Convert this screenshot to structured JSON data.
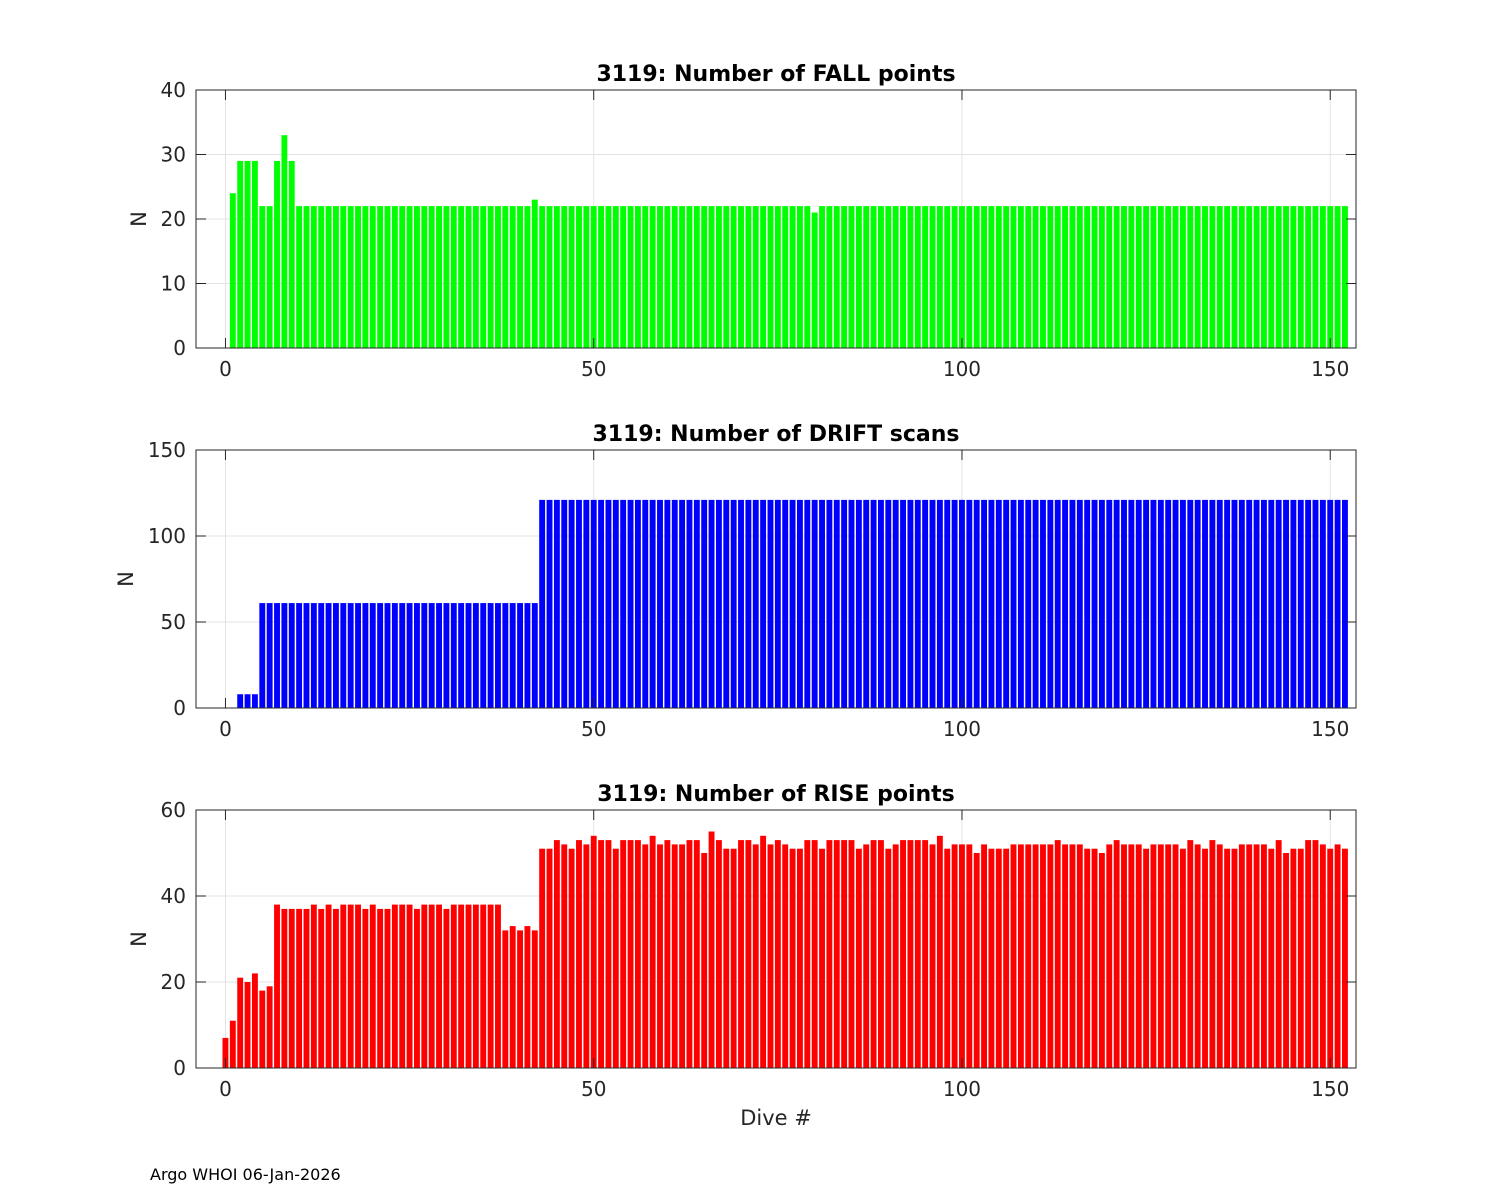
{
  "footer": "Argo WHOI 06-Jan-2026",
  "chart_data": [
    {
      "type": "bar",
      "title": "3119: Number of FALL points",
      "xlabel": "",
      "ylabel": "N",
      "xlim": [
        -4,
        153.5
      ],
      "ylim": [
        0,
        40
      ],
      "xticks": [
        0,
        50,
        100,
        150
      ],
      "yticks": [
        0,
        10,
        20,
        30,
        40
      ],
      "grid": true,
      "color": "#00ff00",
      "x_start": 0,
      "values": [
        0,
        24,
        29,
        29,
        29,
        22,
        22,
        29,
        33,
        29,
        22,
        22,
        22,
        22,
        22,
        22,
        22,
        22,
        22,
        22,
        22,
        22,
        22,
        22,
        22,
        22,
        22,
        22,
        22,
        22,
        22,
        22,
        22,
        22,
        22,
        22,
        22,
        22,
        22,
        22,
        22,
        22,
        23,
        22,
        22,
        22,
        22,
        22,
        22,
        22,
        22,
        22,
        22,
        22,
        22,
        22,
        22,
        22,
        22,
        22,
        22,
        22,
        22,
        22,
        22,
        22,
        22,
        22,
        22,
        22,
        22,
        22,
        22,
        22,
        22,
        22,
        22,
        22,
        22,
        22,
        21,
        22,
        22,
        22,
        22,
        22,
        22,
        22,
        22,
        22,
        22,
        22,
        22,
        22,
        22,
        22,
        22,
        22,
        22,
        22,
        22,
        22,
        22,
        22,
        22,
        22,
        22,
        22,
        22,
        22,
        22,
        22,
        22,
        22,
        22,
        22,
        22,
        22,
        22,
        22,
        22,
        22,
        22,
        22,
        22,
        22,
        22,
        22,
        22,
        22,
        22,
        22,
        22,
        22,
        22,
        22,
        22,
        22,
        22,
        22,
        22,
        22,
        22,
        22,
        22,
        22,
        22,
        22,
        22,
        22,
        22,
        22,
        22
      ]
    },
    {
      "type": "bar",
      "title": "3119: Number of DRIFT scans",
      "xlabel": "",
      "ylabel": "N",
      "xlim": [
        -4,
        153.5
      ],
      "ylim": [
        0,
        150
      ],
      "xticks": [
        0,
        50,
        100,
        150
      ],
      "yticks": [
        0,
        50,
        100,
        150
      ],
      "grid": true,
      "color": "#0000ff",
      "x_start": 0,
      "values": [
        0,
        0,
        8,
        8,
        8,
        61,
        61,
        61,
        61,
        61,
        61,
        61,
        61,
        61,
        61,
        61,
        61,
        61,
        61,
        61,
        61,
        61,
        61,
        61,
        61,
        61,
        61,
        61,
        61,
        61,
        61,
        61,
        61,
        61,
        61,
        61,
        61,
        61,
        61,
        61,
        61,
        61,
        61,
        121,
        121,
        121,
        121,
        121,
        121,
        121,
        121,
        121,
        121,
        121,
        121,
        121,
        121,
        121,
        121,
        121,
        121,
        121,
        121,
        121,
        121,
        121,
        121,
        121,
        121,
        121,
        121,
        121,
        121,
        121,
        121,
        121,
        121,
        121,
        121,
        121,
        121,
        121,
        121,
        121,
        121,
        121,
        121,
        121,
        121,
        121,
        121,
        121,
        121,
        121,
        121,
        121,
        121,
        121,
        121,
        121,
        121,
        121,
        121,
        121,
        121,
        121,
        121,
        121,
        121,
        121,
        121,
        121,
        121,
        121,
        121,
        121,
        121,
        121,
        121,
        121,
        121,
        121,
        121,
        121,
        121,
        121,
        121,
        121,
        121,
        121,
        121,
        121,
        121,
        121,
        121,
        121,
        121,
        121,
        121,
        121,
        121,
        121,
        121,
        121,
        121,
        121,
        121,
        121,
        121,
        121,
        121,
        121,
        121
      ]
    },
    {
      "type": "bar",
      "title": "3119: Number of RISE points",
      "xlabel": "Dive #",
      "ylabel": "N",
      "xlim": [
        -4,
        153.5
      ],
      "ylim": [
        0,
        60
      ],
      "xticks": [
        0,
        50,
        100,
        150
      ],
      "yticks": [
        0,
        20,
        40,
        60
      ],
      "grid": true,
      "color": "#ff0000",
      "x_start": 0,
      "values": [
        7,
        11,
        21,
        20,
        22,
        18,
        19,
        38,
        37,
        37,
        37,
        37,
        38,
        37,
        38,
        37,
        38,
        38,
        38,
        37,
        38,
        37,
        37,
        38,
        38,
        38,
        37,
        38,
        38,
        38,
        37,
        38,
        38,
        38,
        38,
        38,
        38,
        38,
        32,
        33,
        32,
        33,
        32,
        51,
        51,
        53,
        52,
        51,
        53,
        52,
        54,
        53,
        53,
        51,
        53,
        53,
        53,
        52,
        54,
        52,
        53,
        52,
        52,
        53,
        53,
        50,
        55,
        53,
        51,
        51,
        53,
        53,
        52,
        54,
        52,
        53,
        52,
        51,
        51,
        53,
        53,
        51,
        53,
        53,
        53,
        53,
        51,
        52,
        53,
        53,
        51,
        52,
        53,
        53,
        53,
        53,
        52,
        54,
        51,
        52,
        52,
        52,
        50,
        52,
        51,
        51,
        51,
        52,
        52,
        52,
        52,
        52,
        52,
        53,
        52,
        52,
        52,
        51,
        51,
        50,
        52,
        53,
        52,
        52,
        52,
        51,
        52,
        52,
        52,
        52,
        51,
        53,
        52,
        51,
        53,
        52,
        51,
        51,
        52,
        52,
        52,
        52,
        51,
        53,
        50,
        51,
        51,
        53,
        53,
        52,
        51,
        52,
        51
      ]
    }
  ]
}
